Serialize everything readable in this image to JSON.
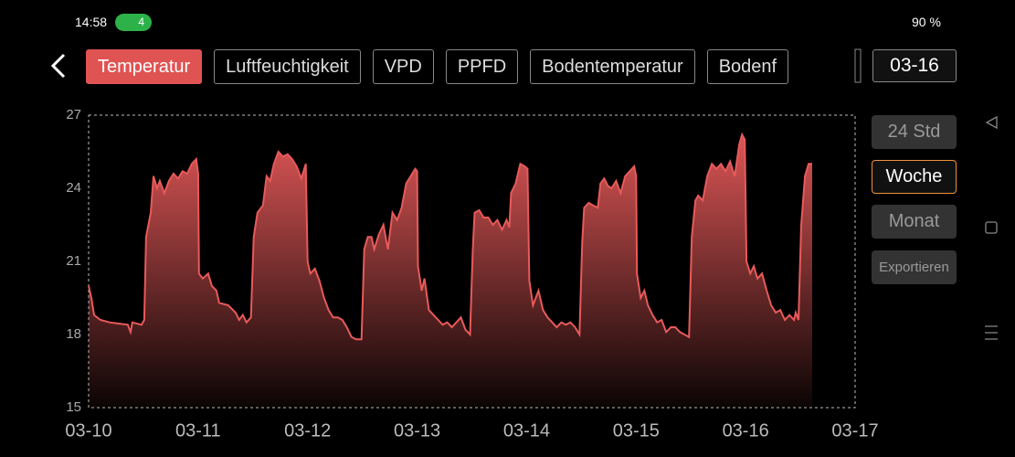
{
  "status_bar": {
    "time": "14:58",
    "wifi_badge": "4",
    "battery": "90 %"
  },
  "tabs": [
    {
      "label": "Temperatur",
      "active": true
    },
    {
      "label": "Luftfeuchtigkeit"
    },
    {
      "label": "VPD"
    },
    {
      "label": "PPFD"
    },
    {
      "label": "Bodentemperatur"
    },
    {
      "label": "Bodenf"
    }
  ],
  "date_button": "03-16",
  "range_buttons": [
    {
      "label": "24 Std"
    },
    {
      "label": "Woche",
      "active": true
    },
    {
      "label": "Monat"
    }
  ],
  "export_button": "Exportieren",
  "chart_data": {
    "type": "area",
    "color": "#e85a5a",
    "xlim": [
      0,
      7
    ],
    "ylim": [
      15,
      27
    ],
    "yticks": [
      15,
      18,
      21,
      24,
      27
    ],
    "xticks": [
      {
        "value": 0,
        "label": "03-10"
      },
      {
        "value": 1,
        "label": "03-11"
      },
      {
        "value": 2,
        "label": "03-12"
      },
      {
        "value": 3,
        "label": "03-13"
      },
      {
        "value": 4,
        "label": "03-14"
      },
      {
        "value": 5,
        "label": "03-15"
      },
      {
        "value": 6,
        "label": "03-16"
      },
      {
        "value": 7,
        "label": "03-17"
      }
    ],
    "x": [
      0,
      0.025,
      0.05,
      0.108,
      0.192,
      0.358,
      0.383,
      0.4,
      0.483,
      0.508,
      0.525,
      0.567,
      0.592,
      0.625,
      0.65,
      0.692,
      0.733,
      0.775,
      0.817,
      0.858,
      0.9,
      0.942,
      0.983,
      1.0,
      1.008,
      1.042,
      1.092,
      1.125,
      1.167,
      1.192,
      1.275,
      1.342,
      1.375,
      1.408,
      1.442,
      1.483,
      1.508,
      1.542,
      1.592,
      1.625,
      1.658,
      1.692,
      1.733,
      1.775,
      1.817,
      1.858,
      1.9,
      1.942,
      1.983,
      2.0,
      2.025,
      2.067,
      2.108,
      2.15,
      2.192,
      2.233,
      2.275,
      2.317,
      2.358,
      2.4,
      2.442,
      2.492,
      2.517,
      2.55,
      2.583,
      2.608,
      2.65,
      2.692,
      2.733,
      2.775,
      2.817,
      2.858,
      2.9,
      2.942,
      2.983,
      3.0,
      3.008,
      3.042,
      3.067,
      3.108,
      3.15,
      3.192,
      3.233,
      3.275,
      3.317,
      3.358,
      3.4,
      3.442,
      3.483,
      3.508,
      3.525,
      3.567,
      3.608,
      3.65,
      3.692,
      3.733,
      3.775,
      3.817,
      3.842,
      3.858,
      3.9,
      3.942,
      3.983,
      4.008,
      4.025,
      4.058,
      4.108,
      4.15,
      4.192,
      4.233,
      4.275,
      4.317,
      4.358,
      4.4,
      4.442,
      4.483,
      4.508,
      4.525,
      4.567,
      4.608,
      4.65,
      4.675,
      4.708,
      4.742,
      4.775,
      4.817,
      4.858,
      4.9,
      4.942,
      4.983,
      5.0,
      5.008,
      5.042,
      5.075,
      5.108,
      5.15,
      5.192,
      5.233,
      5.275,
      5.317,
      5.358,
      5.4,
      5.442,
      5.483,
      5.508,
      5.542,
      5.567,
      5.608,
      5.65,
      5.692,
      5.733,
      5.775,
      5.817,
      5.858,
      5.9,
      5.942,
      5.967,
      5.992,
      6.008,
      6.042,
      6.075,
      6.108,
      6.15,
      6.192,
      6.233,
      6.275,
      6.317,
      6.358,
      6.4,
      6.442,
      6.458,
      6.483,
      6.508,
      6.542,
      6.575,
      6.608
    ],
    "values": [
      20.0,
      19.5,
      18.8,
      18.6,
      18.5,
      18.4,
      18.1,
      18.5,
      18.4,
      18.6,
      22.0,
      23.0,
      24.5,
      24.0,
      24.3,
      23.8,
      24.3,
      24.6,
      24.4,
      24.7,
      24.6,
      25.0,
      25.2,
      24.6,
      20.5,
      20.3,
      20.5,
      20.0,
      19.8,
      19.3,
      19.2,
      18.9,
      18.6,
      18.8,
      18.5,
      18.7,
      22.0,
      23.0,
      23.3,
      24.5,
      24.3,
      25.0,
      25.5,
      25.3,
      25.4,
      25.2,
      24.9,
      24.4,
      25.0,
      21.0,
      20.5,
      20.7,
      20.2,
      19.5,
      19.0,
      18.7,
      18.7,
      18.6,
      18.3,
      17.9,
      17.8,
      17.8,
      21.5,
      22.0,
      22.0,
      21.5,
      22.1,
      22.5,
      21.5,
      23.0,
      22.7,
      23.2,
      24.2,
      24.5,
      24.8,
      24.7,
      20.8,
      19.8,
      20.3,
      19.0,
      18.8,
      18.6,
      18.4,
      18.5,
      18.3,
      18.5,
      18.7,
      18.2,
      18.0,
      21.5,
      23.0,
      23.1,
      22.8,
      22.8,
      22.5,
      22.7,
      22.3,
      22.7,
      22.4,
      23.8,
      24.2,
      25.0,
      24.9,
      24.8,
      20.2,
      19.2,
      19.8,
      19.0,
      18.7,
      18.5,
      18.3,
      18.5,
      18.4,
      18.5,
      18.3,
      18.0,
      21.8,
      23.2,
      23.4,
      23.3,
      23.2,
      24.2,
      24.4,
      24.1,
      24.0,
      24.3,
      23.8,
      24.5,
      24.7,
      24.9,
      24.5,
      20.5,
      19.5,
      19.8,
      19.2,
      18.8,
      18.5,
      18.6,
      18.1,
      18.3,
      18.3,
      18.1,
      18.0,
      17.9,
      22.0,
      23.5,
      23.7,
      23.5,
      24.5,
      25.0,
      24.8,
      25.0,
      24.7,
      25.1,
      24.5,
      25.8,
      26.2,
      26.0,
      21.0,
      20.5,
      20.8,
      20.3,
      20.5,
      19.8,
      19.2,
      18.9,
      19.0,
      18.6,
      18.8,
      18.6,
      18.9,
      18.6,
      22.5,
      24.5,
      25.0,
      25.0
    ]
  }
}
